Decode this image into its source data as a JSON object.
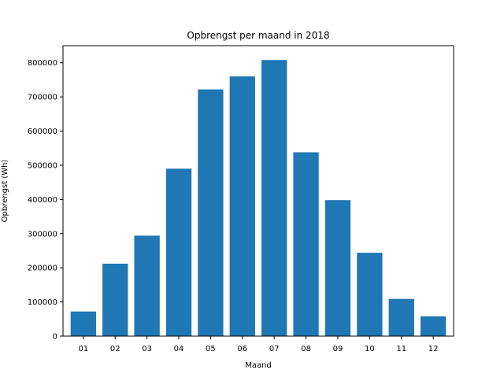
{
  "chart_data": {
    "type": "bar",
    "title": "Opbrengst per maand in 2018",
    "xlabel": "Maand",
    "ylabel": "Opbrengst (Wh)",
    "categories": [
      "01",
      "02",
      "03",
      "04",
      "05",
      "06",
      "07",
      "08",
      "09",
      "10",
      "11",
      "12"
    ],
    "values": [
      72000,
      212000,
      294000,
      490000,
      722000,
      760000,
      808000,
      538000,
      398000,
      244000,
      109000,
      58000
    ],
    "ylim": [
      0,
      850000
    ],
    "yticks": [
      0,
      100000,
      200000,
      300000,
      400000,
      500000,
      600000,
      700000,
      800000
    ],
    "ytick_labels": [
      "0",
      "100000",
      "200000",
      "300000",
      "400000",
      "500000",
      "600000",
      "700000",
      "800000"
    ],
    "grid": false,
    "bar_color": "#1f77b4"
  }
}
